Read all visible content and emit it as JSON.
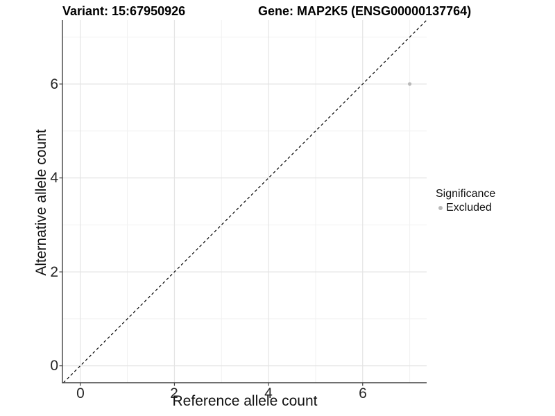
{
  "chart_data": {
    "type": "scatter",
    "title_left": "Variant: 15:67950926",
    "title_right": "Gene: MAP2K5 (ENSG00000137764)",
    "xlabel": "Reference allele count",
    "ylabel": "Alternative allele count",
    "xlim": [
      -0.38,
      7.36
    ],
    "ylim": [
      -0.36,
      7.36
    ],
    "x_major_ticks": [
      0,
      2,
      4,
      6
    ],
    "y_major_ticks": [
      0,
      2,
      4,
      6
    ],
    "x_minor_gridlines": [
      1,
      3,
      5,
      7
    ],
    "y_minor_gridlines": [
      1,
      3,
      5,
      7
    ],
    "grid": "on",
    "points": [
      {
        "x": 7,
        "y": 6,
        "series": "Excluded"
      }
    ],
    "reference_line": {
      "kind": "identity y = x",
      "style": "dashed",
      "color": "#000000"
    },
    "legend": {
      "title": "Significance",
      "position": "right",
      "entries": [
        {
          "label": "Excluded",
          "color": "#b9b9b9"
        }
      ]
    }
  },
  "colors": {
    "background": "#ffffff",
    "grid_major": "#e4e4e4",
    "grid_minor": "#f1f1f1",
    "axis_line": "#404040",
    "tick_mark": "#404040",
    "point": "#b9b9b9"
  }
}
